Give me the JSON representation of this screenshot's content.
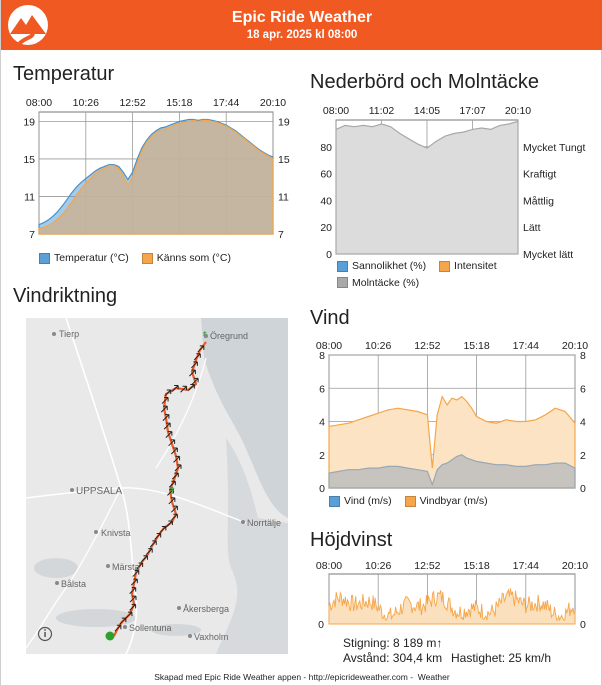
{
  "header": {
    "app_title": "Epic Ride Weather",
    "date": "18 apr. 2025 kl 08:00",
    "brand_color": "#f05a22"
  },
  "sections": {
    "temperature_title": "Temperatur",
    "precip_title": "Nederbörd och Molntäcke",
    "wind_dir_title": "Vindriktning",
    "wind_title": "Vind",
    "elevation_title": "Höjdvinst"
  },
  "colors": {
    "series_blue": "#5aa0d8",
    "series_orange": "#f5a64a",
    "cloud_grey": "#a9a9a9",
    "route": "#f05a22",
    "area_fill": "#d8c8b0"
  },
  "chart_data": [
    {
      "id": "temperature",
      "type": "area",
      "x_ticks": [
        "08:00",
        "10:26",
        "12:52",
        "15:18",
        "17:44",
        "20:10"
      ],
      "y_ticks": [
        "19",
        "15",
        "11",
        "7"
      ],
      "ylim": [
        7,
        20
      ],
      "x": [
        0,
        0.1,
        0.2,
        0.3,
        0.4,
        0.5,
        0.6,
        0.7,
        0.8,
        0.9,
        1.0,
        1.1,
        1.2,
        1.3,
        1.4,
        1.5,
        1.6,
        1.7,
        1.8,
        1.9,
        2.0,
        2.1,
        2.2,
        2.3,
        2.4,
        2.5,
        2.6,
        2.7,
        2.8,
        2.9,
        3.0,
        3.1,
        3.2,
        3.3,
        3.4,
        3.5,
        3.6,
        3.7,
        3.8,
        3.9,
        4.0,
        4.1,
        4.2,
        4.3,
        4.4,
        4.5,
        4.6,
        4.7,
        4.8,
        4.9,
        5.0
      ],
      "series": [
        {
          "name": "Temperatur (°C)",
          "values": [
            8.0,
            8.2,
            8.5,
            8.9,
            9.4,
            10.0,
            10.7,
            11.4,
            12.0,
            12.5,
            12.9,
            13.3,
            13.7,
            14.0,
            14.2,
            14.4,
            14.4,
            14.2,
            13.6,
            12.8,
            13.6,
            15.0,
            16.2,
            17.0,
            17.6,
            18.0,
            18.3,
            18.4,
            18.6,
            18.8,
            19.0,
            19.1,
            19.2,
            19.2,
            19.1,
            19.2,
            19.2,
            19.1,
            19.0,
            18.8,
            18.6,
            18.3,
            18.0,
            17.6,
            17.2,
            16.8,
            16.4,
            16.0,
            15.7,
            15.4,
            15.2
          ]
        },
        {
          "name": "Känns som (°C)",
          "values": [
            7.6,
            7.7,
            7.9,
            8.2,
            8.6,
            9.1,
            9.7,
            10.4,
            11.1,
            11.8,
            12.4,
            12.9,
            13.4,
            13.8,
            14.0,
            14.3,
            14.3,
            14.0,
            13.2,
            12.2,
            13.0,
            14.6,
            15.9,
            16.8,
            17.4,
            17.8,
            18.1,
            18.2,
            18.4,
            18.6,
            18.8,
            18.9,
            19.0,
            19.1,
            19.0,
            19.1,
            19.1,
            19.0,
            18.9,
            18.7,
            18.5,
            18.2,
            17.9,
            17.5,
            17.1,
            16.7,
            16.3,
            15.9,
            15.6,
            15.3,
            15.0
          ]
        }
      ]
    },
    {
      "id": "precipitation",
      "type": "area",
      "x_ticks": [
        "08:00",
        "11:02",
        "14:05",
        "17:07",
        "20:10"
      ],
      "y_ticks": [
        "80",
        "60",
        "40",
        "20",
        "0"
      ],
      "intensity_labels": [
        "Mycket Tungt",
        "Kraftigt",
        "Måttlig",
        "Lätt",
        "Mycket lätt"
      ],
      "ylim": [
        0,
        100
      ],
      "x": [
        0,
        0.2,
        0.4,
        0.6,
        0.8,
        1.0,
        1.2,
        1.4,
        1.6,
        1.8,
        2.0,
        2.2,
        2.4,
        2.6,
        2.8,
        3.0,
        3.2,
        3.4,
        3.6,
        3.8,
        4.0
      ],
      "series": [
        {
          "name": "Sannolikhet (%)",
          "values": [
            0,
            0,
            0,
            0,
            0,
            0,
            0,
            0,
            0,
            0,
            0,
            0,
            0,
            0,
            0,
            0,
            0,
            0,
            0,
            0,
            0
          ]
        },
        {
          "name": "Intensitet",
          "values": [
            0,
            0,
            0,
            0,
            0,
            0,
            0,
            0,
            0,
            0,
            0,
            0,
            0,
            0,
            0,
            0,
            0,
            0,
            0,
            0,
            0
          ]
        },
        {
          "name": "Molntäcke (%)",
          "values": [
            93,
            96,
            95,
            96,
            95,
            97,
            95,
            90,
            86,
            82,
            79,
            84,
            88,
            90,
            91,
            93,
            94,
            93,
            96,
            97,
            99
          ]
        }
      ]
    },
    {
      "id": "wind",
      "type": "area",
      "x_ticks": [
        "08:00",
        "10:26",
        "12:52",
        "15:18",
        "17:44",
        "20:10"
      ],
      "y_ticks": [
        "8",
        "6",
        "4",
        "2",
        "0"
      ],
      "ylim": [
        0,
        8
      ],
      "x": [
        0,
        0.2,
        0.4,
        0.6,
        0.8,
        1.0,
        1.2,
        1.4,
        1.6,
        1.8,
        2.0,
        2.1,
        2.2,
        2.3,
        2.4,
        2.5,
        2.6,
        2.7,
        2.8,
        2.9,
        3.0,
        3.2,
        3.4,
        3.6,
        3.8,
        4.0,
        4.2,
        4.4,
        4.6,
        4.8,
        5.0
      ],
      "series": [
        {
          "name": "Vind (m/s)",
          "values": [
            0.9,
            1.0,
            1.1,
            1.1,
            1.2,
            1.2,
            1.3,
            1.3,
            1.2,
            1.1,
            1.0,
            0.2,
            1.1,
            1.4,
            1.5,
            1.7,
            1.9,
            2.0,
            1.8,
            1.7,
            1.6,
            1.5,
            1.4,
            1.4,
            1.3,
            1.3,
            1.4,
            1.4,
            1.5,
            1.5,
            1.2
          ]
        },
        {
          "name": "Vindbyar (m/s)",
          "values": [
            3.7,
            3.8,
            3.9,
            4.1,
            4.3,
            4.5,
            4.7,
            4.8,
            4.7,
            4.6,
            4.4,
            1.2,
            4.4,
            5.5,
            5.0,
            5.4,
            5.3,
            5.5,
            5.2,
            4.8,
            4.3,
            4.0,
            3.9,
            4.1,
            4.0,
            4.0,
            4.1,
            4.4,
            4.8,
            4.6,
            3.9
          ]
        }
      ]
    },
    {
      "id": "elevation",
      "type": "area",
      "x_ticks": [
        "08:00",
        "10:26",
        "12:52",
        "15:18",
        "17:44",
        "20:10"
      ],
      "y_ticks": [
        "0"
      ],
      "series": [
        {
          "name": "Höjdvinst",
          "values": []
        }
      ]
    }
  ],
  "wind_direction_map": {
    "places": [
      "Tierp",
      "Öregrund",
      "UPPSALA",
      "Knivsta",
      "Märsta",
      "Norrtälje",
      "Bålsta",
      "Åkersberga",
      "Sollentuna",
      "Vaxholm"
    ],
    "info_icon": "info-icon"
  },
  "stats": {
    "climb": "Stigning: 8 189 m↑",
    "distance": "Avstånd: 304,4 km",
    "speed": "Hastighet: 25 km/h"
  },
  "footer": "Skapad med Epic Ride Weather appen - http://epicrideweather.com -  Weather"
}
